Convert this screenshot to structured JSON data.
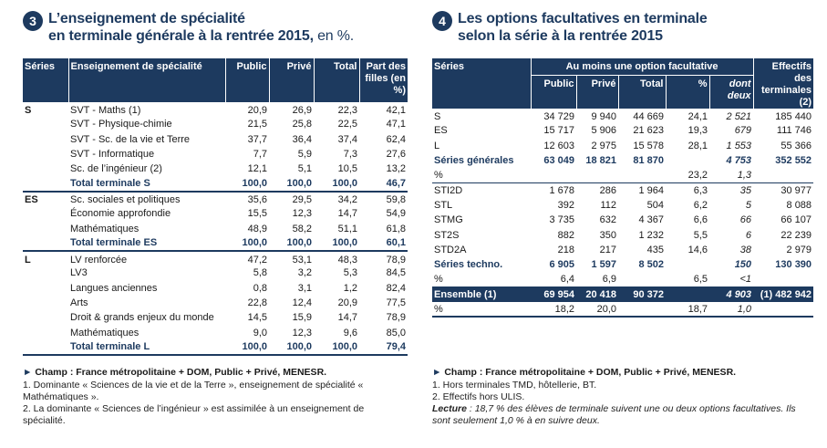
{
  "left": {
    "number": "3",
    "title_line1": "L’enseignement de spécialité",
    "title_line2_bold": "en terminale générale à la rentrée 2015,",
    "title_line2_light": " en %.",
    "headers": [
      "Séries",
      "Enseignement de spécialité",
      "Public",
      "Privé",
      "Total",
      "Part des filles (en %)"
    ],
    "groups": [
      {
        "serie": "S",
        "rows": [
          [
            "SVT - Maths (1)",
            "20,9",
            "26,9",
            "22,3",
            "42,1"
          ],
          [
            "SVT - Physique-chimie",
            "21,5",
            "25,8",
            "22,5",
            "47,1"
          ],
          [
            "SVT - Sc. de la vie et Terre",
            "37,7",
            "36,4",
            "37,4",
            "62,4"
          ],
          [
            "SVT - Informatique",
            "7,7",
            "5,9",
            "7,3",
            "27,6"
          ],
          [
            "Sc. de l’ingénieur (2)",
            "12,1",
            "5,1",
            "10,5",
            "13,2"
          ]
        ],
        "total": [
          "Total terminale S",
          "100,0",
          "100,0",
          "100,0",
          "46,7"
        ]
      },
      {
        "serie": "ES",
        "rows": [
          [
            "Sc. sociales et politiques",
            "35,6",
            "29,5",
            "34,2",
            "59,8"
          ],
          [
            "Économie approfondie",
            "15,5",
            "12,3",
            "14,7",
            "54,9"
          ],
          [
            "Mathématiques",
            "48,9",
            "58,2",
            "51,1",
            "61,8"
          ]
        ],
        "total": [
          "Total terminale ES",
          "100,0",
          "100,0",
          "100,0",
          "60,1"
        ]
      },
      {
        "serie": "L",
        "rows": [
          [
            "LV renforcée",
            "47,2",
            "53,1",
            "48,3",
            "78,9"
          ],
          [
            "LV3",
            "5,8",
            "3,2",
            "5,3",
            "84,5"
          ],
          [
            "Langues anciennes",
            "0,8",
            "3,1",
            "1,2",
            "82,4"
          ],
          [
            "Arts",
            "22,8",
            "12,4",
            "20,9",
            "77,5"
          ],
          [
            "Droit & grands enjeux du monde",
            "14,5",
            "15,9",
            "14,7",
            "78,9"
          ],
          [
            "Mathématiques",
            "9,0",
            "12,3",
            "9,6",
            "85,0"
          ]
        ],
        "total": [
          "Total terminale L",
          "100,0",
          "100,0",
          "100,0",
          "79,4"
        ]
      }
    ],
    "champ": "Champ : France métropolitaine + DOM, Public + Privé, MENESR.",
    "note1": "1.  Dominante « Sciences de la vie et de la Terre », enseignement de spécialité « Mathématiques ».",
    "note2": "2.  La dominante « Sciences de l’ingénieur » est assimilée à un enseignement de spécialité."
  },
  "right": {
    "number": "4",
    "title_line1": "Les options facultatives en terminale",
    "title_line2": "selon la série à la rentrée 2015",
    "headers": {
      "series": "Séries",
      "group": "Au moins une option facultative",
      "effectifs": "Effectifs des terminales (2)",
      "public": "Public",
      "prive": "Privé",
      "total": "Total",
      "pct": "%",
      "dont": "dont deux"
    },
    "rows": [
      {
        "k": "row",
        "cells": [
          "S",
          "34 729",
          "9 940",
          "44 669",
          "24,1",
          "2 521",
          "185 440"
        ]
      },
      {
        "k": "row",
        "cells": [
          "ES",
          "15 717",
          "5 906",
          "21 623",
          "19,3",
          "679",
          "111 746"
        ]
      },
      {
        "k": "row",
        "cells": [
          "L",
          "12 603",
          "2 975",
          "15 578",
          "28,1",
          "1 553",
          "55 366"
        ]
      },
      {
        "k": "sg",
        "cells": [
          "Séries générales",
          "63 049",
          "18 821",
          "81 870",
          "",
          "4 753",
          "352 552"
        ]
      },
      {
        "k": "pct",
        "cells": [
          "%",
          "",
          "",
          "",
          "23,2",
          "1,3",
          ""
        ]
      },
      {
        "k": "row",
        "cells": [
          "STI2D",
          "1 678",
          "286",
          "1 964",
          "6,3",
          "35",
          "30 977"
        ]
      },
      {
        "k": "row",
        "cells": [
          "STL",
          "392",
          "112",
          "504",
          "6,2",
          "5",
          "8 088"
        ]
      },
      {
        "k": "row",
        "cells": [
          "STMG",
          "3 735",
          "632",
          "4 367",
          "6,6",
          "66",
          "66 107"
        ]
      },
      {
        "k": "row",
        "cells": [
          "ST2S",
          "882",
          "350",
          "1 232",
          "5,5",
          "6",
          "22 239"
        ]
      },
      {
        "k": "row",
        "cells": [
          "STD2A",
          "218",
          "217",
          "435",
          "14,6",
          "38",
          "2 979"
        ]
      },
      {
        "k": "sg",
        "cells": [
          "Séries techno.",
          "6 905",
          "1 597",
          "8 502",
          "",
          "150",
          "130 390"
        ]
      },
      {
        "k": "pct",
        "cells": [
          "%",
          "6,4",
          "6,9",
          "",
          "6,5",
          "<1",
          ""
        ]
      },
      {
        "k": "hl",
        "cells": [
          "Ensemble (1)",
          "69 954",
          "20 418",
          "90 372",
          "",
          "4 903",
          "(1) 482 942"
        ]
      },
      {
        "k": "pct2",
        "cells": [
          "%",
          "18,2",
          "20,0",
          "",
          "18,7",
          "1,0",
          ""
        ]
      }
    ],
    "champ": "Champ :  France métropolitaine + DOM, Public + Privé, MENESR.",
    "note1": "1.  Hors terminales TMD, hôtellerie, BT.",
    "note2": "2.  Effectifs hors ULIS.",
    "lecture_label": "Lecture",
    "lecture_text": " : 18,7 % des élèves de terminale suivent une ou deux options facultatives. Ils sont seulement 1,0 % à en suivre deux."
  }
}
